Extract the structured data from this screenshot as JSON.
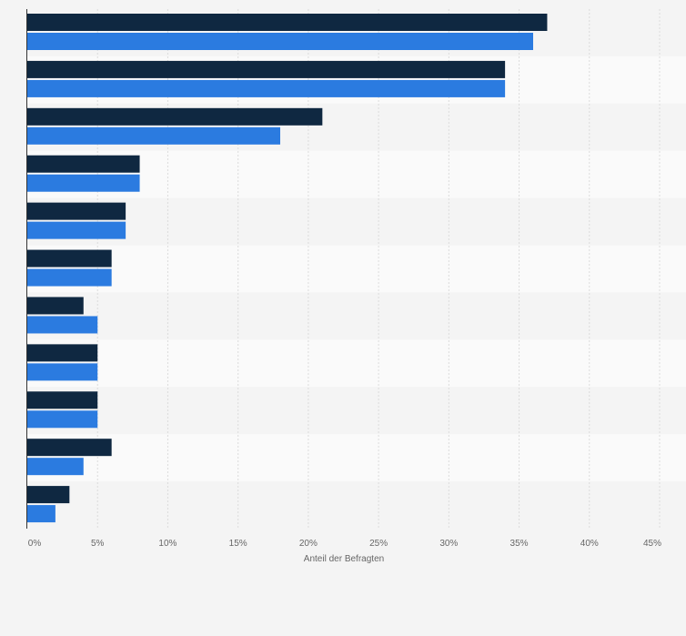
{
  "chart_data": {
    "type": "bar",
    "orientation": "horizontal",
    "categories": [
      "",
      "",
      "",
      "",
      "",
      "",
      "",
      "",
      "",
      "",
      ""
    ],
    "series": [
      {
        "color": "#0f2841",
        "values": [
          37,
          34,
          21,
          8,
          7,
          6,
          4,
          5,
          5,
          6,
          3
        ]
      },
      {
        "color": "#2b7be0",
        "values": [
          36,
          34,
          18,
          8,
          7,
          6,
          5,
          5,
          5,
          4,
          2
        ]
      }
    ],
    "xlabel": "Anteil der Befragten",
    "xlim": [
      0,
      45
    ],
    "x_ticks": [
      "0%",
      "5%",
      "10%",
      "15%",
      "20%",
      "25%",
      "30%",
      "35%",
      "40%",
      "45%"
    ],
    "grid": true
  }
}
